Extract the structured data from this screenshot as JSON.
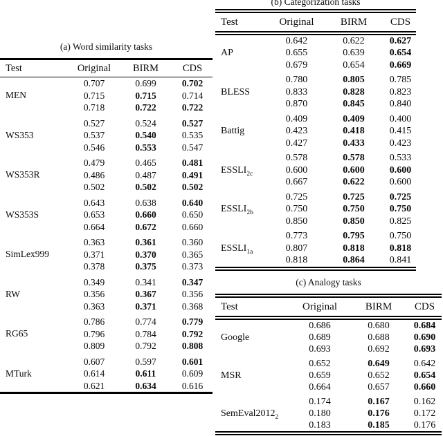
{
  "page": {
    "background": "#ffffff",
    "text_color": "#0a0a0a"
  },
  "tables": [
    {
      "caption": "(a) Word similarity tasks",
      "columns": [
        "Test",
        "Original",
        "BIRM",
        "CDS"
      ],
      "groups": [
        {
          "test": "MEN",
          "sub": "",
          "rows": [
            [
              [
                "0.707",
                0
              ],
              [
                "0.699",
                0
              ],
              [
                "0.702",
                1
              ]
            ],
            [
              [
                "0.715",
                0
              ],
              [
                "0.715",
                1
              ],
              [
                "0.714",
                0
              ]
            ],
            [
              [
                "0.718",
                0
              ],
              [
                "0.722",
                1
              ],
              [
                "0.722",
                1
              ]
            ]
          ]
        },
        {
          "test": "WS353",
          "sub": "",
          "rows": [
            [
              [
                "0.527",
                0
              ],
              [
                "0.524",
                0
              ],
              [
                "0.527",
                1
              ]
            ],
            [
              [
                "0.537",
                0
              ],
              [
                "0.540",
                1
              ],
              [
                "0.535",
                0
              ]
            ],
            [
              [
                "0.546",
                0
              ],
              [
                "0.553",
                1
              ],
              [
                "0.547",
                0
              ]
            ]
          ]
        },
        {
          "test": "WS353R",
          "sub": "",
          "rows": [
            [
              [
                "0.479",
                0
              ],
              [
                "0.465",
                0
              ],
              [
                "0.481",
                1
              ]
            ],
            [
              [
                "0.486",
                0
              ],
              [
                "0.487",
                0
              ],
              [
                "0.491",
                1
              ]
            ],
            [
              [
                "0.502",
                0
              ],
              [
                "0.502",
                1
              ],
              [
                "0.502",
                1
              ]
            ]
          ]
        },
        {
          "test": "WS353S",
          "sub": "",
          "rows": [
            [
              [
                "0.643",
                0
              ],
              [
                "0.638",
                0
              ],
              [
                "0.640",
                1
              ]
            ],
            [
              [
                "0.653",
                0
              ],
              [
                "0.660",
                1
              ],
              [
                "0.650",
                0
              ]
            ],
            [
              [
                "0.664",
                0
              ],
              [
                "0.672",
                1
              ],
              [
                "0.660",
                0
              ]
            ]
          ]
        },
        {
          "test": "SimLex999",
          "sub": "",
          "rows": [
            [
              [
                "0.363",
                0
              ],
              [
                "0.361",
                1
              ],
              [
                "0.360",
                0
              ]
            ],
            [
              [
                "0.371",
                0
              ],
              [
                "0.370",
                1
              ],
              [
                "0.365",
                0
              ]
            ],
            [
              [
                "0.378",
                0
              ],
              [
                "0.375",
                1
              ],
              [
                "0.373",
                0
              ]
            ]
          ]
        },
        {
          "test": "RW",
          "sub": "",
          "rows": [
            [
              [
                "0.349",
                0
              ],
              [
                "0.341",
                0
              ],
              [
                "0.347",
                1
              ]
            ],
            [
              [
                "0.356",
                0
              ],
              [
                "0.367",
                1
              ],
              [
                "0.356",
                0
              ]
            ],
            [
              [
                "0.363",
                0
              ],
              [
                "0.371",
                1
              ],
              [
                "0.368",
                0
              ]
            ]
          ]
        },
        {
          "test": "RG65",
          "sub": "",
          "rows": [
            [
              [
                "0.786",
                0
              ],
              [
                "0.774",
                0
              ],
              [
                "0.779",
                1
              ]
            ],
            [
              [
                "0.796",
                0
              ],
              [
                "0.784",
                0
              ],
              [
                "0.792",
                1
              ]
            ],
            [
              [
                "0.809",
                0
              ],
              [
                "0.792",
                0
              ],
              [
                "0.808",
                1
              ]
            ]
          ]
        },
        {
          "test": "MTurk",
          "sub": "",
          "rows": [
            [
              [
                "0.607",
                0
              ],
              [
                "0.597",
                0
              ],
              [
                "0.601",
                1
              ]
            ],
            [
              [
                "0.614",
                0
              ],
              [
                "0.611",
                1
              ],
              [
                "0.609",
                0
              ]
            ],
            [
              [
                "0.621",
                0
              ],
              [
                "0.634",
                1
              ],
              [
                "0.616",
                0
              ]
            ]
          ]
        }
      ]
    },
    {
      "caption": "(b) Categorization tasks",
      "columns": [
        "Test",
        "Original",
        "BIRM",
        "CDS"
      ],
      "groups": [
        {
          "test": "AP",
          "sub": "",
          "rows": [
            [
              [
                "0.642",
                0
              ],
              [
                "0.622",
                0
              ],
              [
                "0.627",
                1
              ]
            ],
            [
              [
                "0.655",
                0
              ],
              [
                "0.639",
                0
              ],
              [
                "0.654",
                1
              ]
            ],
            [
              [
                "0.679",
                0
              ],
              [
                "0.654",
                0
              ],
              [
                "0.669",
                1
              ]
            ]
          ]
        },
        {
          "test": "BLESS",
          "sub": "",
          "rows": [
            [
              [
                "0.780",
                0
              ],
              [
                "0.805",
                1
              ],
              [
                "0.785",
                0
              ]
            ],
            [
              [
                "0.833",
                0
              ],
              [
                "0.828",
                1
              ],
              [
                "0.823",
                0
              ]
            ],
            [
              [
                "0.870",
                0
              ],
              [
                "0.845",
                1
              ],
              [
                "0.840",
                0
              ]
            ]
          ]
        },
        {
          "test": "Battig",
          "sub": "",
          "rows": [
            [
              [
                "0.409",
                0
              ],
              [
                "0.409",
                1
              ],
              [
                "0.400",
                0
              ]
            ],
            [
              [
                "0.423",
                0
              ],
              [
                "0.418",
                1
              ],
              [
                "0.415",
                0
              ]
            ],
            [
              [
                "0.427",
                0
              ],
              [
                "0.433",
                1
              ],
              [
                "0.423",
                0
              ]
            ]
          ]
        },
        {
          "test": "ESSLI",
          "sub": "2c",
          "rows": [
            [
              [
                "0.578",
                0
              ],
              [
                "0.578",
                1
              ],
              [
                "0.533",
                0
              ]
            ],
            [
              [
                "0.600",
                0
              ],
              [
                "0.600",
                1
              ],
              [
                "0.600",
                1
              ]
            ],
            [
              [
                "0.667",
                0
              ],
              [
                "0.622",
                1
              ],
              [
                "0.600",
                0
              ]
            ]
          ]
        },
        {
          "test": "ESSLI",
          "sub": "2b",
          "rows": [
            [
              [
                "0.725",
                0
              ],
              [
                "0.725",
                1
              ],
              [
                "0.725",
                1
              ]
            ],
            [
              [
                "0.750",
                0
              ],
              [
                "0.750",
                1
              ],
              [
                "0.750",
                1
              ]
            ],
            [
              [
                "0.850",
                0
              ],
              [
                "0.850",
                1
              ],
              [
                "0.825",
                0
              ]
            ]
          ]
        },
        {
          "test": "ESSLI",
          "sub": "1a",
          "rows": [
            [
              [
                "0.773",
                0
              ],
              [
                "0.795",
                1
              ],
              [
                "0.750",
                0
              ]
            ],
            [
              [
                "0.807",
                0
              ],
              [
                "0.818",
                1
              ],
              [
                "0.818",
                1
              ]
            ],
            [
              [
                "0.818",
                0
              ],
              [
                "0.864",
                1
              ],
              [
                "0.841",
                0
              ]
            ]
          ]
        }
      ]
    },
    {
      "caption": "(c) Analogy tasks",
      "columns": [
        "Test",
        "Original",
        "BIRM",
        "CDS"
      ],
      "groups": [
        {
          "test": "Google",
          "sub": "",
          "rows": [
            [
              [
                "0.686",
                0
              ],
              [
                "0.680",
                0
              ],
              [
                "0.684",
                1
              ]
            ],
            [
              [
                "0.689",
                0
              ],
              [
                "0.688",
                0
              ],
              [
                "0.690",
                1
              ]
            ],
            [
              [
                "0.693",
                0
              ],
              [
                "0.692",
                0
              ],
              [
                "0.693",
                1
              ]
            ]
          ]
        },
        {
          "test": "MSR",
          "sub": "",
          "rows": [
            [
              [
                "0.652",
                0
              ],
              [
                "0.649",
                1
              ],
              [
                "0.642",
                0
              ]
            ],
            [
              [
                "0.659",
                0
              ],
              [
                "0.652",
                0
              ],
              [
                "0.654",
                1
              ]
            ],
            [
              [
                "0.664",
                0
              ],
              [
                "0.657",
                0
              ],
              [
                "0.660",
                1
              ]
            ]
          ]
        },
        {
          "test": "SemEval2012",
          "sub": "2",
          "rows": [
            [
              [
                "0.174",
                0
              ],
              [
                "0.167",
                1
              ],
              [
                "0.162",
                0
              ]
            ],
            [
              [
                "0.180",
                0
              ],
              [
                "0.176",
                1
              ],
              [
                "0.172",
                0
              ]
            ],
            [
              [
                "0.183",
                0
              ],
              [
                "0.185",
                1
              ],
              [
                "0.176",
                0
              ]
            ]
          ]
        }
      ]
    }
  ]
}
